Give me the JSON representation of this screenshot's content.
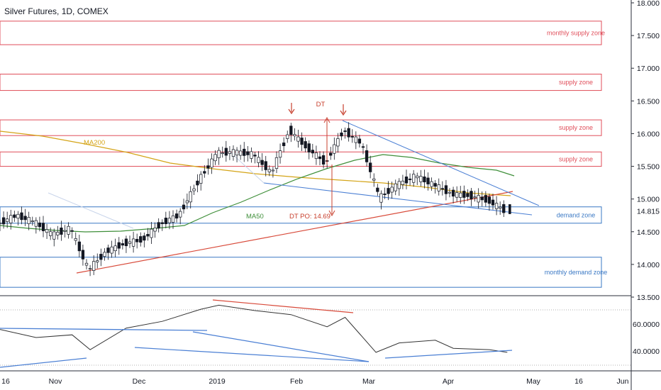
{
  "chart_title": "Silver Futures, 1D, COMEX",
  "colors": {
    "supply": "#e04e5a",
    "demand": "#3a78c4",
    "ma200": "#d4a417",
    "ma50": "#3f8f3a",
    "dt": "#c8402e",
    "trend_blue": "#4a7fd4",
    "support_red": "#d84a3a",
    "rsi_line": "#333333"
  },
  "price_axis": {
    "ticks": [
      "18.000",
      "17.500",
      "17.000",
      "16.500",
      "16.000",
      "15.500",
      "15.000",
      "14.500",
      "14.000",
      "13.500"
    ],
    "current_price": "14.815"
  },
  "rsi_axis": {
    "ticks": [
      "60.0000",
      "40.0000"
    ]
  },
  "time_axis": {
    "ticks": [
      "16",
      "Nov",
      "Dec",
      "2019",
      "Feb",
      "Mar",
      "Apr",
      "May",
      "16",
      "Jun"
    ]
  },
  "zones": [
    {
      "label": "monthly supply zone",
      "type": "supply",
      "top": 17.72,
      "bottom": 17.36
    },
    {
      "label": "supply zone",
      "type": "supply",
      "top": 16.91,
      "bottom": 16.66
    },
    {
      "label": "supply zone",
      "type": "supply",
      "top": 16.21,
      "bottom": 15.97
    },
    {
      "label": "supply zone",
      "type": "supply",
      "top": 15.72,
      "bottom": 15.5
    },
    {
      "label": "demand zone",
      "type": "demand",
      "top": 14.88,
      "bottom": 14.63
    },
    {
      "label": "monthly demand zone",
      "type": "demand",
      "top": 14.11,
      "bottom": 13.65
    }
  ],
  "annotations": {
    "ma200": "MA200",
    "ma50": "MA50",
    "dt": "DT",
    "dt_po": "DT PO: 14.69"
  },
  "chart_data": {
    "type": "candlestick",
    "title": "Silver Futures, 1D, COMEX",
    "ylim": [
      13.5,
      18.0
    ],
    "x_range": [
      "2018-10-09",
      "2019-06-10"
    ],
    "series": [
      {
        "name": "price",
        "points": [
          [
            "2018-10-09",
            14.62
          ],
          [
            "2018-10-16",
            14.75
          ],
          [
            "2018-10-23",
            14.65
          ],
          [
            "2018-10-30",
            14.45
          ],
          [
            "2018-11-06",
            14.55
          ],
          [
            "2018-11-13",
            13.92
          ],
          [
            "2018-11-20",
            14.2
          ],
          [
            "2018-11-27",
            14.32
          ],
          [
            "2018-12-04",
            14.38
          ],
          [
            "2018-12-11",
            14.62
          ],
          [
            "2018-12-18",
            14.75
          ],
          [
            "2018-12-26",
            15.3
          ],
          [
            "2019-01-02",
            15.7
          ],
          [
            "2019-01-09",
            15.72
          ],
          [
            "2019-01-16",
            15.68
          ],
          [
            "2019-01-23",
            15.4
          ],
          [
            "2019-01-30",
            16.05
          ],
          [
            "2019-02-06",
            15.78
          ],
          [
            "2019-02-13",
            15.55
          ],
          [
            "2019-02-20",
            16.05
          ],
          [
            "2019-02-27",
            15.85
          ],
          [
            "2019-03-06",
            15.02
          ],
          [
            "2019-03-13",
            15.22
          ],
          [
            "2019-03-20",
            15.35
          ],
          [
            "2019-03-27",
            15.22
          ],
          [
            "2019-04-03",
            15.08
          ],
          [
            "2019-04-10",
            15.05
          ],
          [
            "2019-04-17",
            14.98
          ],
          [
            "2019-04-24",
            14.815
          ]
        ]
      }
    ],
    "overlays": [
      "MA200",
      "MA50"
    ],
    "rsi": {
      "ticks": [
        60,
        40
      ],
      "points": [
        [
          "2018-10-09",
          56
        ],
        [
          "2018-10-23",
          50
        ],
        [
          "2018-11-06",
          52
        ],
        [
          "2018-11-13",
          41
        ],
        [
          "2018-11-27",
          57
        ],
        [
          "2018-12-11",
          62
        ],
        [
          "2018-12-26",
          71
        ],
        [
          "2019-01-02",
          74
        ],
        [
          "2019-01-16",
          70
        ],
        [
          "2019-01-30",
          67
        ],
        [
          "2019-02-13",
          58
        ],
        [
          "2019-02-20",
          65
        ],
        [
          "2019-03-04",
          39
        ],
        [
          "2019-03-13",
          46
        ],
        [
          "2019-03-27",
          48
        ],
        [
          "2019-04-03",
          42
        ],
        [
          "2019-04-17",
          41
        ],
        [
          "2019-04-24",
          39
        ]
      ]
    }
  }
}
